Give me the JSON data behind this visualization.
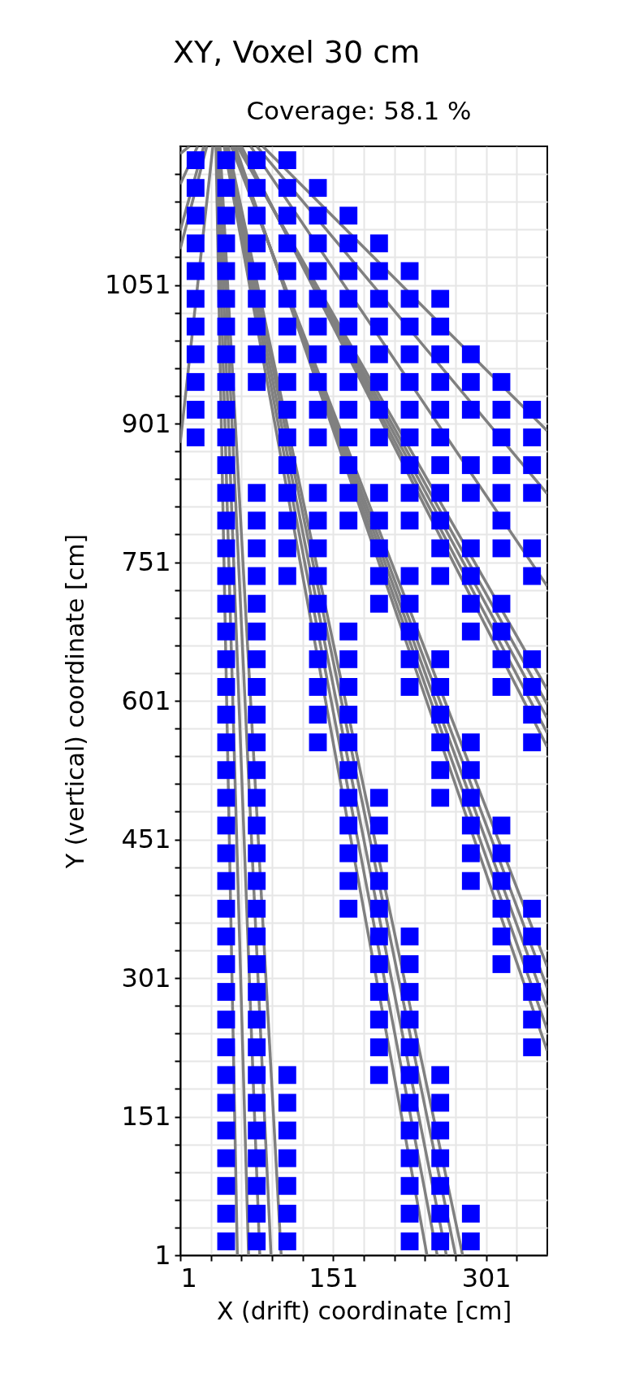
{
  "chart_data": {
    "type": "scatter",
    "title": "XY, Voxel 30 cm",
    "subtitle": "Coverage: 58.1 %",
    "xlabel": "X (drift) coordinate [cm]",
    "ylabel": "Y (vertical) coordinate [cm]",
    "xlim": [
      1,
      361
    ],
    "ylim": [
      1,
      1201
    ],
    "xticks": [
      1,
      {
        "value": 31,
        "label": null
      },
      {
        "value": 61,
        "label": null
      },
      {
        "value": 91,
        "label": null
      },
      {
        "value": 121,
        "label": null
      },
      151,
      {
        "value": 181,
        "label": null
      },
      {
        "value": 211,
        "label": null
      },
      {
        "value": 241,
        "label": null
      },
      {
        "value": 271,
        "label": null
      },
      301,
      {
        "value": 331,
        "label": null
      }
    ],
    "yticks": [
      1,
      {
        "value": 31,
        "label": null
      },
      {
        "value": 61,
        "label": null
      },
      {
        "value": 91,
        "label": null
      },
      {
        "value": 121,
        "label": null
      },
      151,
      {
        "value": 181,
        "label": null
      },
      {
        "value": 211,
        "label": null
      },
      {
        "value": 241,
        "label": null
      },
      {
        "value": 271,
        "label": null
      },
      301,
      {
        "value": 331,
        "label": null
      },
      {
        "value": 361,
        "label": null
      },
      {
        "value": 391,
        "label": null
      },
      {
        "value": 421,
        "label": null
      },
      451,
      {
        "value": 481,
        "label": null
      },
      {
        "value": 511,
        "label": null
      },
      {
        "value": 541,
        "label": null
      },
      {
        "value": 571,
        "label": null
      },
      601,
      {
        "value": 631,
        "label": null
      },
      {
        "value": 661,
        "label": null
      },
      {
        "value": 691,
        "label": null
      },
      {
        "value": 721,
        "label": null
      },
      751,
      {
        "value": 781,
        "label": null
      },
      {
        "value": 811,
        "label": null
      },
      {
        "value": 841,
        "label": null
      },
      {
        "value": 871,
        "label": null
      },
      901,
      {
        "value": 931,
        "label": null
      },
      {
        "value": 961,
        "label": null
      },
      {
        "value": 991,
        "label": null
      },
      {
        "value": 1021,
        "label": null
      },
      1051,
      {
        "value": 1081,
        "label": null
      },
      {
        "value": 1111,
        "label": null
      },
      {
        "value": 1141,
        "label": null
      },
      {
        "value": 1171,
        "label": null
      }
    ],
    "grid": true,
    "line_style": "solid",
    "series": [
      {
        "marker": "square",
        "color": "#0000ff",
        "x": [
          16,
          46,
          76,
          106,
          16,
          46,
          76,
          106,
          136,
          16,
          46,
          76,
          106,
          136,
          166,
          16,
          46,
          76,
          106,
          136,
          166,
          196,
          16,
          46,
          76,
          106,
          136,
          166,
          196,
          226,
          16,
          46,
          76,
          106,
          136,
          166,
          196,
          226,
          256,
          16,
          46,
          76,
          106,
          136,
          166,
          196,
          226,
          256,
          16,
          46,
          76,
          106,
          136,
          166,
          196,
          226,
          256,
          286,
          16,
          46,
          76,
          106,
          136,
          166,
          196,
          226,
          256,
          286,
          316,
          16,
          46,
          106,
          136,
          166,
          196,
          226,
          256,
          286,
          316,
          346,
          16,
          46,
          106,
          136,
          166,
          196,
          226,
          256,
          316,
          346,
          46,
          106,
          166,
          226,
          256,
          286,
          316,
          346,
          46,
          76,
          106,
          136,
          166,
          196,
          226,
          256,
          286,
          316,
          346,
          46,
          76,
          106,
          136,
          166,
          196,
          226,
          256,
          316,
          46,
          76,
          106,
          136,
          196,
          256,
          286,
          316,
          346,
          46,
          76,
          106,
          136,
          196,
          226,
          256,
          286,
          346,
          46,
          76,
          136,
          196,
          226,
          286,
          316,
          46,
          76,
          136,
          166,
          226,
          286,
          316,
          46,
          76,
          136,
          166,
          226,
          256,
          316,
          346,
          46,
          76,
          136,
          166,
          226,
          256,
          316,
          346,
          46,
          76,
          136,
          166,
          256,
          346,
          46,
          76,
          136,
          166,
          256,
          286,
          346,
          46,
          76,
          166,
          256,
          286,
          46,
          76,
          166,
          196,
          256,
          286,
          46,
          76,
          166,
          196,
          286,
          316,
          46,
          76,
          166,
          196,
          286,
          316,
          46,
          76,
          166,
          196,
          286,
          316,
          46,
          76,
          166,
          196,
          316,
          346,
          46,
          76,
          196,
          226,
          316,
          346,
          46,
          76,
          196,
          226,
          316,
          346,
          46,
          76,
          196,
          226,
          346,
          46,
          76,
          196,
          226,
          346,
          46,
          76,
          196,
          226,
          346,
          46,
          76,
          106,
          196,
          226,
          256,
          46,
          76,
          106,
          226,
          256,
          46,
          76,
          106,
          226,
          256,
          46,
          76,
          106,
          226,
          256,
          46,
          76,
          106,
          226,
          256,
          46,
          76,
          106,
          226,
          256,
          286,
          46,
          76,
          106,
          226,
          256,
          286
        ],
        "values": [
          1186,
          1186,
          1186,
          1186,
          1156,
          1156,
          1156,
          1156,
          1156,
          1126,
          1126,
          1126,
          1126,
          1126,
          1126,
          1096,
          1096,
          1096,
          1096,
          1096,
          1096,
          1096,
          1066,
          1066,
          1066,
          1066,
          1066,
          1066,
          1066,
          1066,
          1036,
          1036,
          1036,
          1036,
          1036,
          1036,
          1036,
          1036,
          1036,
          1006,
          1006,
          1006,
          1006,
          1006,
          1006,
          1006,
          1006,
          1006,
          976,
          976,
          976,
          976,
          976,
          976,
          976,
          976,
          976,
          976,
          946,
          946,
          946,
          946,
          946,
          946,
          946,
          946,
          946,
          946,
          946,
          916,
          916,
          916,
          916,
          916,
          916,
          916,
          916,
          916,
          916,
          916,
          886,
          886,
          886,
          886,
          886,
          886,
          886,
          886,
          886,
          886,
          856,
          856,
          856,
          856,
          856,
          856,
          856,
          856,
          826,
          826,
          826,
          826,
          826,
          826,
          826,
          826,
          826,
          826,
          826,
          796,
          796,
          796,
          796,
          796,
          796,
          796,
          796,
          796,
          766,
          766,
          766,
          766,
          766,
          766,
          766,
          766,
          766,
          736,
          736,
          736,
          736,
          736,
          736,
          736,
          736,
          736,
          706,
          706,
          706,
          706,
          706,
          706,
          706,
          676,
          676,
          676,
          676,
          676,
          676,
          676,
          646,
          646,
          646,
          646,
          646,
          646,
          646,
          646,
          616,
          616,
          616,
          616,
          616,
          616,
          616,
          616,
          586,
          586,
          586,
          586,
          586,
          586,
          556,
          556,
          556,
          556,
          556,
          556,
          556,
          526,
          526,
          526,
          526,
          526,
          496,
          496,
          496,
          496,
          496,
          496,
          466,
          466,
          466,
          466,
          466,
          466,
          436,
          436,
          436,
          436,
          436,
          436,
          406,
          406,
          406,
          406,
          406,
          406,
          376,
          376,
          376,
          376,
          376,
          376,
          346,
          346,
          346,
          346,
          346,
          346,
          316,
          316,
          316,
          316,
          316,
          316,
          286,
          286,
          286,
          286,
          286,
          256,
          256,
          256,
          256,
          256,
          226,
          226,
          226,
          226,
          226,
          196,
          196,
          196,
          196,
          196,
          196,
          166,
          166,
          166,
          166,
          166,
          136,
          136,
          136,
          136,
          136,
          106,
          106,
          106,
          106,
          106,
          76,
          76,
          76,
          76,
          76,
          46,
          46,
          46,
          46,
          46,
          46,
          16,
          16,
          16,
          16,
          16,
          16
        ]
      },
      {
        "type": "line",
        "color": "#808080",
        "x": [
          10,
          1
        ],
        "values": [
          1201,
          1193
        ]
      },
      {
        "type": "line",
        "color": "#808080",
        "x": [
          18,
          1
        ],
        "values": [
          1201,
          1160
        ]
      },
      {
        "type": "line",
        "color": "#808080",
        "x": [
          24,
          1
        ],
        "values": [
          1201,
          1110
        ]
      },
      {
        "type": "line",
        "color": "#808080",
        "x": [
          27,
          1
        ],
        "values": [
          1201,
          1090
        ]
      },
      {
        "type": "line",
        "color": "#808080",
        "x": [
          33,
          1
        ],
        "values": [
          1201,
          880
        ]
      },
      {
        "type": "line",
        "color": "#808080",
        "x": [
          36,
          57
        ],
        "values": [
          1201,
          1
        ]
      },
      {
        "type": "line",
        "color": "#808080",
        "x": [
          37,
          68
        ],
        "values": [
          1201,
          1
        ]
      },
      {
        "type": "line",
        "color": "#808080",
        "x": [
          38,
          79
        ],
        "values": [
          1201,
          1
        ]
      },
      {
        "type": "line",
        "color": "#808080",
        "x": [
          39,
          90
        ],
        "values": [
          1201,
          1
        ]
      },
      {
        "type": "line",
        "color": "#808080",
        "x": [
          40,
          100
        ],
        "values": [
          1201,
          1
        ]
      },
      {
        "type": "line",
        "color": "#808080",
        "x": [
          44,
          243
        ],
        "values": [
          1201,
          1
        ]
      },
      {
        "type": "line",
        "color": "#808080",
        "x": [
          45,
          253
        ],
        "values": [
          1201,
          1
        ]
      },
      {
        "type": "line",
        "color": "#808080",
        "x": [
          46,
          262
        ],
        "values": [
          1201,
          1
        ]
      },
      {
        "type": "line",
        "color": "#808080",
        "x": [
          47,
          271
        ],
        "values": [
          1201,
          1
        ]
      },
      {
        "type": "line",
        "color": "#808080",
        "x": [
          48,
          278
        ],
        "values": [
          1201,
          1
        ]
      },
      {
        "type": "line",
        "color": "#808080",
        "x": [
          51,
          361
        ],
        "values": [
          1201,
          313
        ]
      },
      {
        "type": "line",
        "color": "#808080",
        "x": [
          52,
          361
        ],
        "values": [
          1201,
          290
        ]
      },
      {
        "type": "line",
        "color": "#808080",
        "x": [
          53,
          361
        ],
        "values": [
          1201,
          268
        ]
      },
      {
        "type": "line",
        "color": "#808080",
        "x": [
          54,
          361
        ],
        "values": [
          1201,
          245
        ]
      },
      {
        "type": "line",
        "color": "#808080",
        "x": [
          55,
          361
        ],
        "values": [
          1201,
          222
        ]
      },
      {
        "type": "line",
        "color": "#808080",
        "x": [
          57,
          361
        ],
        "values": [
          1201,
          613
        ]
      },
      {
        "type": "line",
        "color": "#808080",
        "x": [
          58,
          361
        ],
        "values": [
          1201,
          597
        ]
      },
      {
        "type": "line",
        "color": "#808080",
        "x": [
          59,
          361
        ],
        "values": [
          1201,
          582
        ]
      },
      {
        "type": "line",
        "color": "#808080",
        "x": [
          60,
          361
        ],
        "values": [
          1201,
          566
        ]
      },
      {
        "type": "line",
        "color": "#808080",
        "x": [
          61,
          361
        ],
        "values": [
          1201,
          551
        ]
      },
      {
        "type": "line",
        "color": "#808080",
        "x": [
          70,
          361
        ],
        "values": [
          1201,
          725
        ]
      },
      {
        "type": "line",
        "color": "#808080",
        "x": [
          76,
          361
        ],
        "values": [
          1201,
          825
        ]
      },
      {
        "type": "line",
        "color": "#808080",
        "x": [
          82,
          361
        ],
        "values": [
          1201,
          893
        ]
      }
    ]
  }
}
